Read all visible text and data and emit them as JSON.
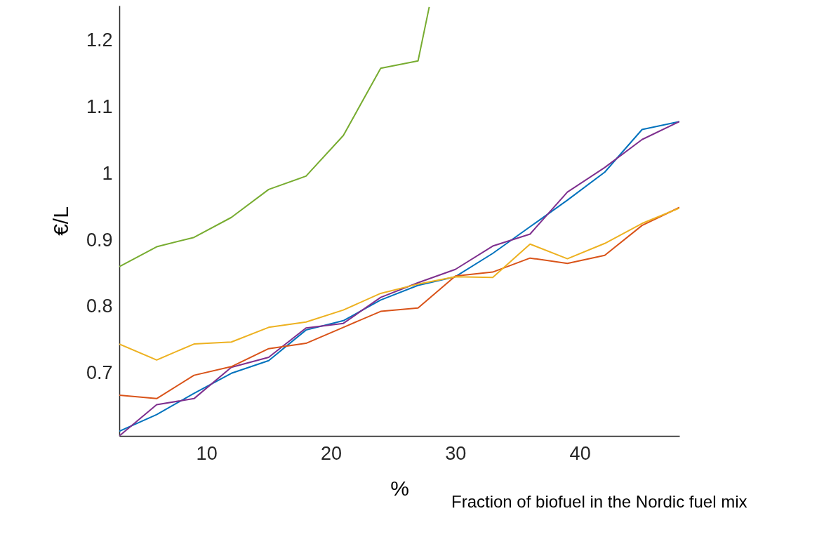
{
  "chart_data": {
    "type": "line",
    "xlabel": "%",
    "ylabel": "€/L",
    "annotations": [
      "Fraction of biofuel in the Nordic fuel mix"
    ],
    "x": [
      3,
      6,
      9,
      12,
      15,
      18,
      21,
      24,
      27,
      30,
      33,
      36,
      39,
      42,
      45,
      48
    ],
    "xlim": [
      3,
      48
    ],
    "xticks": [
      10,
      20,
      30,
      40
    ],
    "ylim": [
      0.606,
      1.252
    ],
    "yticks": [
      0.7,
      0.8,
      0.9,
      1,
      1.1,
      1.2
    ],
    "grid": false,
    "marker": "none",
    "line_style": "solid",
    "series": [
      {
        "color": "#77ac30",
        "x": [
          3,
          6,
          9,
          12,
          15,
          18,
          21,
          24,
          27,
          27.9
        ],
        "values": [
          0.86,
          0.89,
          0.904,
          0.934,
          0.976,
          0.996,
          1.057,
          1.158,
          1.169,
          1.25
        ]
      },
      {
        "color": "#0072bd",
        "values": [
          0.613,
          0.638,
          0.67,
          0.7,
          0.719,
          0.765,
          0.779,
          0.81,
          0.832,
          0.845,
          0.88,
          0.92,
          0.96,
          1.002,
          1.066,
          1.078
        ]
      },
      {
        "color": "#7e2f8e",
        "values": [
          0.606,
          0.653,
          0.662,
          0.709,
          0.724,
          0.768,
          0.775,
          0.814,
          0.836,
          0.856,
          0.891,
          0.909,
          0.972,
          1.009,
          1.051,
          1.078
        ]
      },
      {
        "color": "#d95319",
        "values": [
          0.667,
          0.662,
          0.697,
          0.71,
          0.737,
          0.745,
          0.769,
          0.793,
          0.798,
          0.846,
          0.852,
          0.873,
          0.865,
          0.877,
          0.922,
          0.949
        ]
      },
      {
        "color": "#edb120",
        "values": [
          0.744,
          0.72,
          0.744,
          0.747,
          0.769,
          0.777,
          0.795,
          0.82,
          0.834,
          0.845,
          0.844,
          0.894,
          0.872,
          0.895,
          0.925,
          0.948
        ]
      }
    ]
  }
}
